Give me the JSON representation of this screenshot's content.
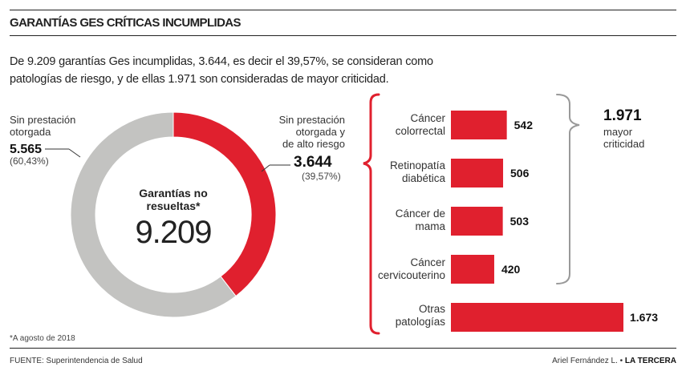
{
  "header": {
    "title": "GARANTÍAS GES CRÍTICAS INCUMPLIDAS",
    "lead_line1": "De 9.209 garantías Ges incumplidas, 3.644, es decir el 39,57%, se consideran como",
    "lead_line2": "patologías de riesgo, y de ellas 1.971 son consideradas de mayor criticidad."
  },
  "donut": {
    "center_label_1": "Garantías no",
    "center_label_2": "resueltas*",
    "center_total": "9.209",
    "left_label_1": "Sin prestación",
    "left_label_2": "otorgada",
    "left_value": "5.565",
    "left_pct": "(60,43%)",
    "right_label_1": "Sin prestación",
    "right_label_2": "otorgada y",
    "right_label_3": "de alto riesgo",
    "right_value": "3.644",
    "right_pct": "(39,57%)"
  },
  "bracket_group": {
    "value": "1.971",
    "label_1": "mayor",
    "label_2": "criticidad"
  },
  "footer": {
    "note": "*A agosto de 2018",
    "source": "FUENTE: Superintendencia de Salud",
    "credit_author": "Ariel Fernández L. •",
    "credit_outlet": "LA TERCERA"
  },
  "colors": {
    "accent": "#e0202e",
    "grey": "#c3c3c1",
    "bracket": "#999999"
  },
  "chart_data": [
    {
      "type": "pie",
      "title": "Garantías no resueltas*",
      "total": 9209,
      "slices": [
        {
          "name": "Sin prestación otorgada",
          "value": 5565,
          "percent": 60.43
        },
        {
          "name": "Sin prestación otorgada y de alto riesgo",
          "value": 3644,
          "percent": 39.57
        }
      ]
    },
    {
      "type": "bar",
      "orientation": "horizontal",
      "categories": [
        {
          "line1": "Cáncer",
          "line2": "colorrectal"
        },
        {
          "line1": "Retinopatía",
          "line2": "diabética"
        },
        {
          "line1": "Cáncer de",
          "line2": "mama"
        },
        {
          "line1": "Cáncer",
          "line2": "cervicouterino"
        },
        {
          "line1": "Otras",
          "line2": "patologías"
        }
      ],
      "values": [
        542,
        506,
        503,
        420,
        1673
      ],
      "value_labels": [
        "542",
        "506",
        "503",
        "420",
        "1.673"
      ]
    }
  ]
}
